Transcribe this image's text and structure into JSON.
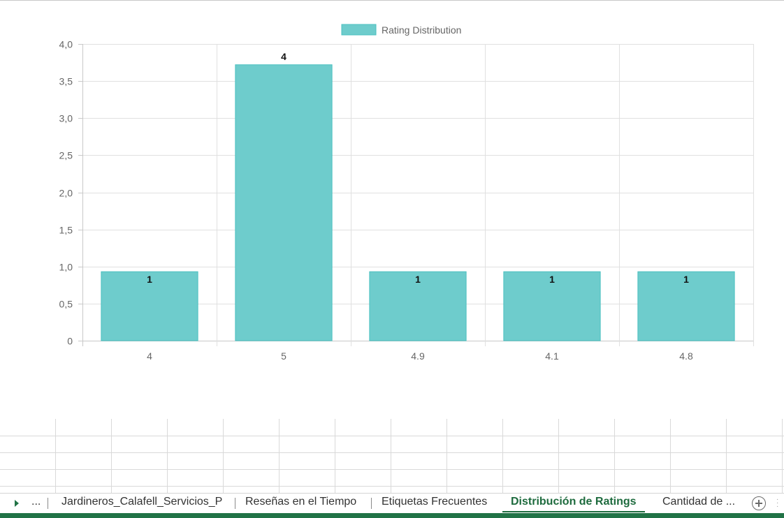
{
  "chart_data": {
    "type": "bar",
    "title": "",
    "legend": {
      "label": "Rating Distribution",
      "position": "top"
    },
    "categories": [
      "4",
      "5",
      "4.9",
      "4.1",
      "4.8"
    ],
    "series": [
      {
        "name": "Rating Distribution",
        "values": [
          1,
          4,
          1,
          1,
          1
        ]
      }
    ],
    "data_labels": [
      "1",
      "4",
      "1",
      "1",
      "1"
    ],
    "ylim": [
      0,
      4
    ],
    "y_ticks": [
      "0",
      "0,5",
      "1,0",
      "1,5",
      "2,0",
      "2,5",
      "3,0",
      "3,5",
      "4,0"
    ],
    "grid": true,
    "colors": {
      "bar_fill": "#6ecccc",
      "bar_border": "#4bc0c0",
      "grid": "#e0e0e0"
    }
  },
  "sheet_tabs": {
    "overflow_label": "...",
    "tabs": [
      {
        "label": "Jardineros_Calafell_Servicios_P",
        "active": false
      },
      {
        "label": "Reseñas en el Tiempo",
        "active": false
      },
      {
        "label": "Etiquetas Frecuentes",
        "active": false
      },
      {
        "label": "Distribución de Ratings",
        "active": true
      },
      {
        "label": "Cantidad de ...",
        "active": false
      }
    ]
  },
  "icons": {
    "scroll_left": "triangle-right-icon",
    "add_sheet": "plus-circle-icon",
    "more_options": "vertical-ellipsis-icon"
  },
  "theme": {
    "accent": "#217346"
  }
}
